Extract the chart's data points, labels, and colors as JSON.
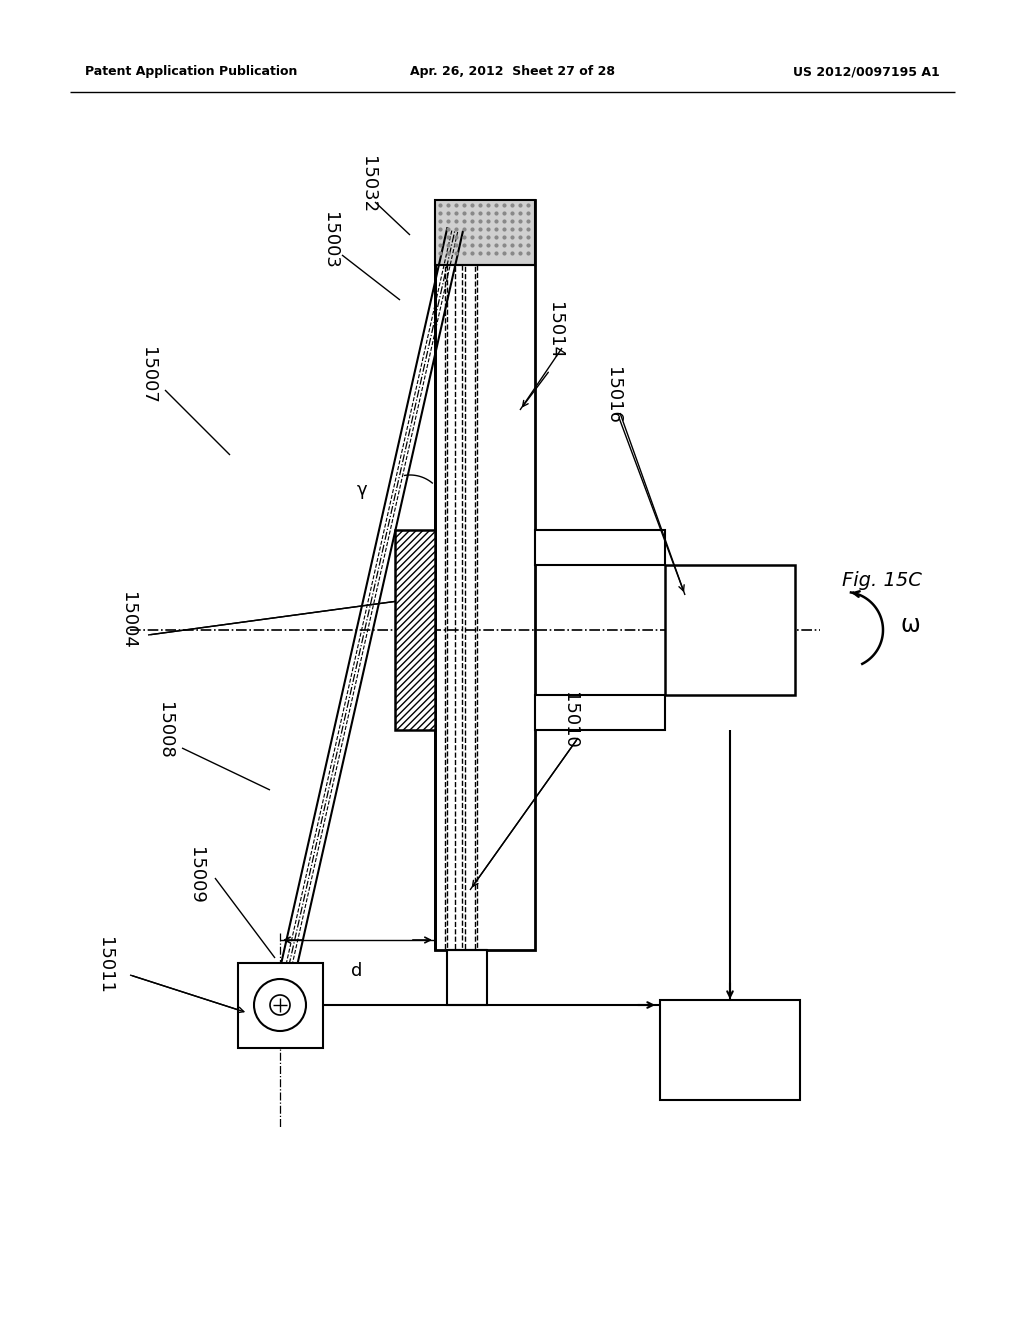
{
  "bg_color": "#ffffff",
  "header_left": "Patent Application Publication",
  "header_mid": "Apr. 26, 2012  Sheet 27 of 28",
  "header_right": "US 2012/0097195 A1",
  "fig_label": "Fig. 15C",
  "omega": "ω",
  "gamma": "γ",
  "d_label": "d",
  "label_15032": "15032",
  "label_15003": "15003",
  "label_15007": "15007",
  "label_15004": "15004",
  "label_15008": "15008",
  "label_15009": "15009",
  "label_15011": "15011",
  "label_15014": "15014",
  "label_15016": "15016",
  "label_15010": "15010"
}
